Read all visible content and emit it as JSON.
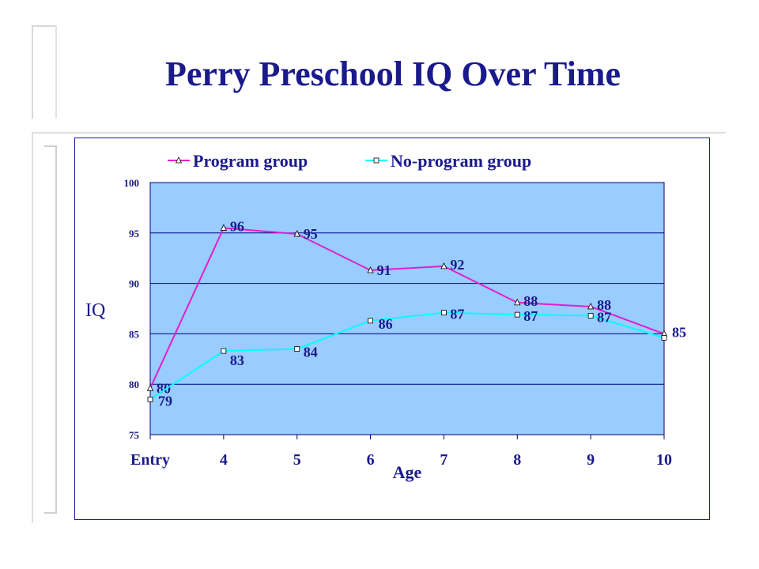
{
  "slide": {
    "title": "Perry Preschool IQ Over Time"
  },
  "colors": {
    "title": "#1a1a8c",
    "plot_bg": "#99ccff",
    "program": "#e020d0",
    "no_program": "#00ffff",
    "label": "#1a1a8c"
  },
  "chart_data": {
    "type": "line",
    "title": "",
    "xlabel": "Age",
    "ylabel": "IQ",
    "categories": [
      "Entry",
      "4",
      "5",
      "6",
      "7",
      "8",
      "9",
      "10"
    ],
    "ylim": [
      75,
      100
    ],
    "yticks": [
      "75",
      "80",
      "85",
      "90",
      "95",
      "100"
    ],
    "grid": true,
    "legend_position": "top",
    "series": [
      {
        "name": "Program group",
        "marker": "triangle",
        "values": [
          79.6,
          95.5,
          94.9,
          91.3,
          91.7,
          88.1,
          87.7,
          85.0
        ],
        "labels": [
          "80",
          "96",
          "95",
          "91",
          "92",
          "88",
          "88",
          "85"
        ]
      },
      {
        "name": "No-program group",
        "marker": "square",
        "values": [
          78.5,
          83.3,
          83.5,
          86.3,
          87.1,
          86.9,
          86.8,
          84.6
        ],
        "labels": [
          "79",
          "83",
          "84",
          "86",
          "87",
          "87",
          "87",
          ""
        ]
      }
    ]
  }
}
